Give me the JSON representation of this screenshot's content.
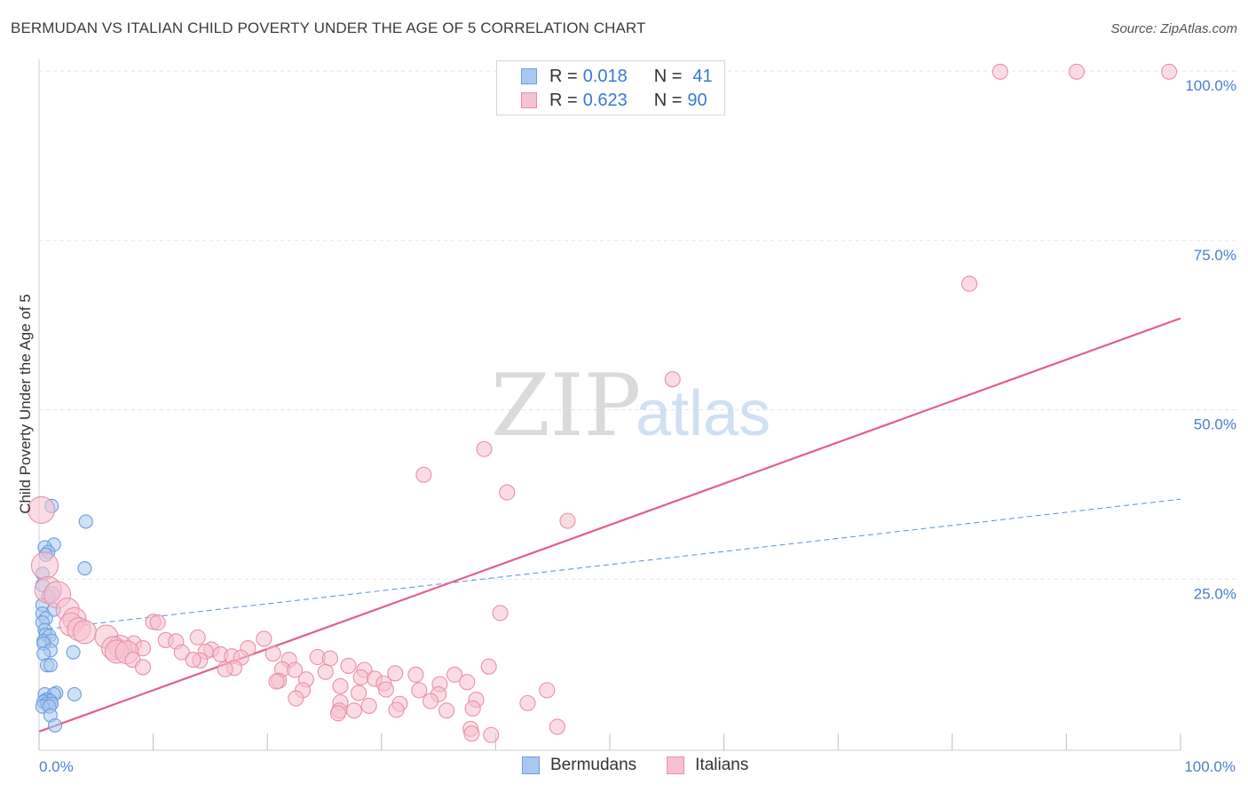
{
  "title": "BERMUDAN VS ITALIAN CHILD POVERTY UNDER THE AGE OF 5 CORRELATION CHART",
  "source": "Source: ZipAtlas.com",
  "watermark": {
    "zip": "ZIP",
    "atlas": "atlas"
  },
  "legend": {
    "rows": [
      {
        "r_label": "R =",
        "r_value": "0.018",
        "n_label": "N =",
        "n_value": "41",
        "color": "#a8c8f0",
        "border": "#6b9de0"
      },
      {
        "r_label": "R =",
        "r_value": "0.623",
        "n_label": "N =",
        "n_value": "90",
        "color": "#f8c0d0",
        "border": "#e890aa"
      }
    ]
  },
  "bottom_legend": [
    {
      "label": "Bermudans",
      "color": "#a8c8f0",
      "border": "#6b9de0"
    },
    {
      "label": "Italians",
      "color": "#f8c0d0",
      "border": "#e890aa"
    }
  ],
  "chart_data": {
    "type": "scatter",
    "title": "BERMUDAN VS ITALIAN CHILD POVERTY UNDER THE AGE OF 5 CORRELATION CHART",
    "xlabel": "",
    "ylabel": "Child Poverty Under the Age of 5",
    "xlim": [
      0,
      100
    ],
    "ylim": [
      0,
      100
    ],
    "x_tick_labels": [
      "0.0%",
      "100.0%"
    ],
    "y_ticks": [
      {
        "value": 25,
        "label": "25.0%"
      },
      {
        "value": 50,
        "label": "50.0%"
      },
      {
        "value": 75,
        "label": "75.0%"
      },
      {
        "value": 100,
        "label": "100.0%"
      }
    ],
    "series": [
      {
        "name": "Bermudans",
        "color": "#6b9de0",
        "fill": "#a8c8f0",
        "trend": {
          "x0": 0,
          "y0": 17.5,
          "x1": 100,
          "y1": 36.8,
          "style": "dashed"
        },
        "points": [
          [
            1.1,
            35.8
          ],
          [
            4.1,
            33.5
          ],
          [
            1.3,
            30.1
          ],
          [
            0.5,
            29.7
          ],
          [
            0.8,
            29.0
          ],
          [
            0.6,
            28.6
          ],
          [
            4.0,
            26.6
          ],
          [
            0.3,
            25.8
          ],
          [
            0.3,
            24.1
          ],
          [
            1.2,
            22.9
          ],
          [
            0.8,
            22.4
          ],
          [
            0.3,
            21.2
          ],
          [
            1.3,
            20.5
          ],
          [
            0.3,
            19.9
          ],
          [
            0.6,
            19.2
          ],
          [
            0.3,
            18.6
          ],
          [
            0.5,
            17.5
          ],
          [
            0.6,
            16.8
          ],
          [
            0.9,
            16.6
          ],
          [
            0.4,
            15.9
          ],
          [
            1.1,
            15.9
          ],
          [
            0.4,
            15.5
          ],
          [
            1.0,
            14.5
          ],
          [
            3.0,
            14.2
          ],
          [
            0.4,
            14.0
          ],
          [
            0.7,
            12.3
          ],
          [
            1.0,
            12.3
          ],
          [
            3.1,
            8.0
          ],
          [
            1.5,
            8.2
          ],
          [
            0.5,
            8.0
          ],
          [
            1.3,
            8.0
          ],
          [
            0.6,
            7.2
          ],
          [
            0.8,
            7.2
          ],
          [
            1.0,
            7.0
          ],
          [
            0.4,
            6.9
          ],
          [
            0.7,
            6.6
          ],
          [
            1.1,
            6.6
          ],
          [
            0.3,
            6.2
          ],
          [
            0.9,
            6.2
          ],
          [
            1.0,
            4.9
          ],
          [
            1.4,
            3.4
          ]
        ]
      },
      {
        "name": "Italians",
        "color": "#e890aa",
        "fill": "#f8c0d0",
        "trend": {
          "x0": 0,
          "y0": 2.5,
          "x1": 100,
          "y1": 63.5,
          "style": "solid"
        },
        "points": [
          [
            84.2,
            99.9
          ],
          [
            90.9,
            99.9
          ],
          [
            99.0,
            99.9
          ],
          [
            81.5,
            68.6
          ],
          [
            55.5,
            54.5
          ],
          [
            39.0,
            44.2
          ],
          [
            33.7,
            40.4
          ],
          [
            41.0,
            37.8
          ],
          [
            46.3,
            33.6
          ],
          [
            0.2,
            35.2
          ],
          [
            0.5,
            27.0
          ],
          [
            0.8,
            23.4
          ],
          [
            1.6,
            22.7
          ],
          [
            2.5,
            20.5
          ],
          [
            3.1,
            19.1
          ],
          [
            40.4,
            20.0
          ],
          [
            10.0,
            18.7
          ],
          [
            10.4,
            18.6
          ],
          [
            2.8,
            18.3
          ],
          [
            3.5,
            17.6
          ],
          [
            4.0,
            17.2
          ],
          [
            5.9,
            16.5
          ],
          [
            13.9,
            16.4
          ],
          [
            19.7,
            16.2
          ],
          [
            11.1,
            16.0
          ],
          [
            12.0,
            15.8
          ],
          [
            8.3,
            15.5
          ],
          [
            7.1,
            15.0
          ],
          [
            6.5,
            14.8
          ],
          [
            9.1,
            14.8
          ],
          [
            18.3,
            14.8
          ],
          [
            15.1,
            14.6
          ],
          [
            14.6,
            14.3
          ],
          [
            12.5,
            14.2
          ],
          [
            20.5,
            14.0
          ],
          [
            15.9,
            13.9
          ],
          [
            16.9,
            13.6
          ],
          [
            6.8,
            14.3
          ],
          [
            7.7,
            14.2
          ],
          [
            17.7,
            13.4
          ],
          [
            14.1,
            13.0
          ],
          [
            8.2,
            13.1
          ],
          [
            13.5,
            13.1
          ],
          [
            21.9,
            13.1
          ],
          [
            24.4,
            13.5
          ],
          [
            25.5,
            13.3
          ],
          [
            27.1,
            12.2
          ],
          [
            9.1,
            12.0
          ],
          [
            17.1,
            11.9
          ],
          [
            16.3,
            11.7
          ],
          [
            21.3,
            11.7
          ],
          [
            22.4,
            11.6
          ],
          [
            28.5,
            11.6
          ],
          [
            25.1,
            11.3
          ],
          [
            31.2,
            11.1
          ],
          [
            39.4,
            12.1
          ],
          [
            28.2,
            10.5
          ],
          [
            29.4,
            10.3
          ],
          [
            36.4,
            10.9
          ],
          [
            33.0,
            10.9
          ],
          [
            23.4,
            10.2
          ],
          [
            21.0,
            10.0
          ],
          [
            20.8,
            9.9
          ],
          [
            37.5,
            9.8
          ],
          [
            30.2,
            9.6
          ],
          [
            26.4,
            9.2
          ],
          [
            23.1,
            8.6
          ],
          [
            30.4,
            8.7
          ],
          [
            35.1,
            9.5
          ],
          [
            33.3,
            8.6
          ],
          [
            44.5,
            8.6
          ],
          [
            28.0,
            8.2
          ],
          [
            22.5,
            7.4
          ],
          [
            35.0,
            8.0
          ],
          [
            38.3,
            7.2
          ],
          [
            26.4,
            6.8
          ],
          [
            42.8,
            6.7
          ],
          [
            31.6,
            6.6
          ],
          [
            34.3,
            7.0
          ],
          [
            28.9,
            6.3
          ],
          [
            31.3,
            5.7
          ],
          [
            35.7,
            5.6
          ],
          [
            38.0,
            5.9
          ],
          [
            26.3,
            5.6
          ],
          [
            27.6,
            5.6
          ],
          [
            26.2,
            5.2
          ],
          [
            45.4,
            3.2
          ],
          [
            37.8,
            2.9
          ],
          [
            37.9,
            2.2
          ],
          [
            39.6,
            2.0
          ]
        ]
      }
    ]
  }
}
